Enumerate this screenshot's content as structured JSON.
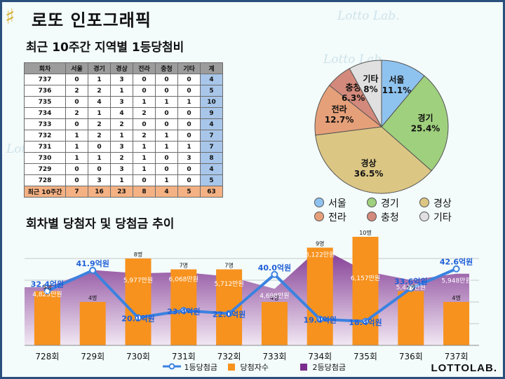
{
  "header": {
    "logo_glyph": "♯",
    "title": "로또 인포그래픽",
    "brand": "LOTTOLAB."
  },
  "watermark_text": "Lotto Lab.",
  "table": {
    "title": "최근 10주간 지역별 1등당첨비",
    "headers": [
      "회차",
      "서울",
      "경기",
      "경상",
      "전라",
      "충청",
      "기타",
      "계"
    ],
    "rows": [
      [
        "737",
        "0",
        "1",
        "3",
        "0",
        "0",
        "0",
        "4"
      ],
      [
        "736",
        "2",
        "2",
        "1",
        "0",
        "0",
        "0",
        "5"
      ],
      [
        "735",
        "0",
        "4",
        "3",
        "1",
        "1",
        "1",
        "10"
      ],
      [
        "734",
        "2",
        "1",
        "4",
        "2",
        "0",
        "0",
        "9"
      ],
      [
        "733",
        "0",
        "2",
        "2",
        "0",
        "0",
        "0",
        "4"
      ],
      [
        "732",
        "1",
        "2",
        "1",
        "2",
        "1",
        "0",
        "7"
      ],
      [
        "731",
        "1",
        "0",
        "3",
        "1",
        "1",
        "1",
        "7"
      ],
      [
        "730",
        "1",
        "1",
        "2",
        "1",
        "0",
        "3",
        "8"
      ],
      [
        "729",
        "0",
        "0",
        "3",
        "1",
        "0",
        "0",
        "4"
      ],
      [
        "728",
        "0",
        "3",
        "1",
        "0",
        "1",
        "0",
        "5"
      ]
    ],
    "summary": [
      "최근 10주간",
      "7",
      "16",
      "23",
      "8",
      "4",
      "5",
      "63"
    ]
  },
  "chart_data": [
    {
      "type": "pie",
      "categories": [
        "서울",
        "경기",
        "경상",
        "전라",
        "충청",
        "기타"
      ],
      "values": [
        11.1,
        25.4,
        36.5,
        12.7,
        6.3,
        8
      ],
      "labels": [
        "11.1%",
        "25.4%",
        "36.5%",
        "12.7%",
        "6.3%",
        "8%"
      ],
      "colors": [
        "#8fc3ef",
        "#9fd07d",
        "#dcc684",
        "#e6a079",
        "#d3897b",
        "#e0e0e0"
      ],
      "legend_position": "bottom"
    },
    {
      "type": "bar",
      "title": "회차별 당첨자 및 당첨금 추이",
      "categories": [
        "728회",
        "729회",
        "730회",
        "731회",
        "732회",
        "733회",
        "734회",
        "735회",
        "736회",
        "737회"
      ],
      "series": [
        {
          "name": "당첨자수",
          "kind": "bar",
          "color": "#f7921e",
          "values": [
            5,
            4,
            8,
            7,
            7,
            4,
            9,
            10,
            5,
            4
          ],
          "labels": [
            "5명",
            "4명",
            "8명",
            "7명",
            "7명",
            "4명",
            "9명",
            "10명",
            "5명",
            "4명"
          ]
        },
        {
          "name": "2등당첨금",
          "kind": "area",
          "color": "#7a2d8c",
          "values": [
            48.25,
            62.5,
            59.77,
            60.68,
            57.12,
            46.98,
            81.22,
            61.57,
            54.2,
            59.48
          ],
          "labels": [
            "4,825만원",
            "",
            "5,977만원",
            "6,068만원",
            "5,712만원",
            "4,698만원",
            "8,122만원",
            "6,157만원",
            "5,420만원",
            "5,948만원"
          ]
        },
        {
          "name": "1등당첨금",
          "kind": "line",
          "color": "#3b82e0",
          "values": [
            32.4,
            41.9,
            20.1,
            23.4,
            22.0,
            40.0,
            19.4,
            18.4,
            33.6,
            42.6
          ],
          "labels": [
            "32.4억원",
            "41.9억원",
            "20.1억원",
            "23.4억원",
            "22.0억원",
            "40.0억원",
            "19.4억원",
            "18.4억원",
            "33.6억원",
            "42.6억원"
          ]
        }
      ],
      "legend_position": "bottom",
      "grid": true
    }
  ]
}
